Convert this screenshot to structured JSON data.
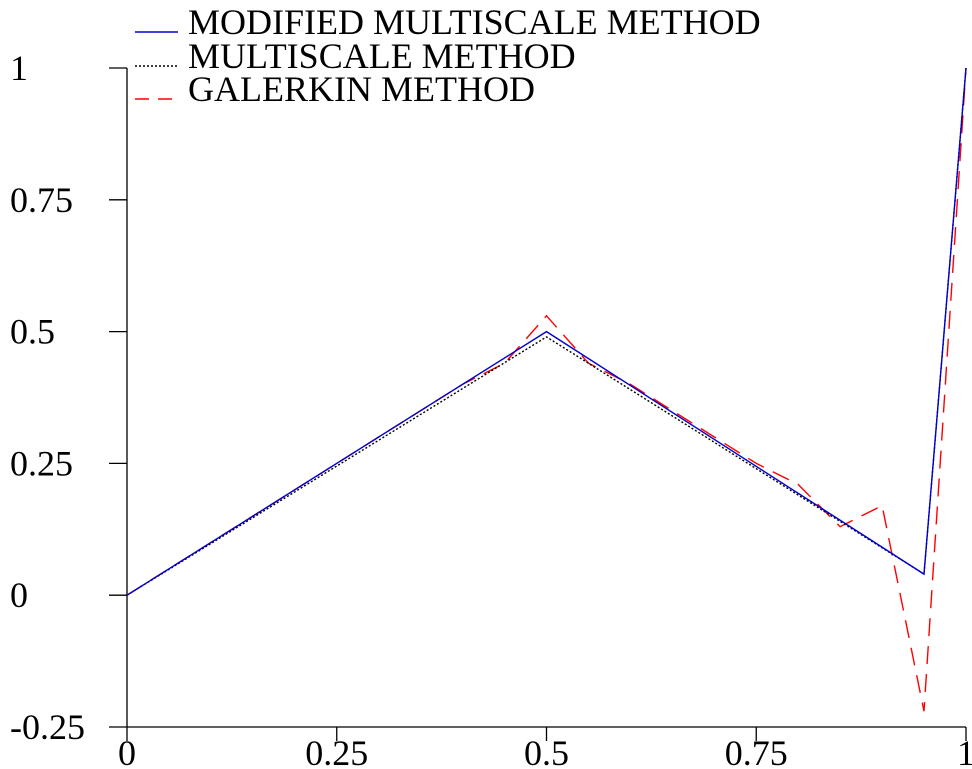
{
  "chart_data": {
    "type": "line",
    "title": "",
    "xlabel": "",
    "ylabel": "",
    "xlim": [
      0,
      1
    ],
    "ylim": [
      -0.25,
      1
    ],
    "x_ticks": [
      0,
      0.25,
      0.5,
      0.75,
      1
    ],
    "x_tick_labels": [
      "0",
      "0.25",
      "0.5",
      "0.75",
      "1"
    ],
    "y_ticks": [
      -0.25,
      0,
      0.25,
      0.5,
      0.75,
      1
    ],
    "y_tick_labels": [
      "-0.25",
      "0",
      "0.25",
      "0.5",
      "0.75",
      "1"
    ],
    "grid": false,
    "legend_position": "top-left",
    "series": [
      {
        "name": "MODIFIED MULTISCALE METHOD",
        "color": "#0000cc",
        "style": "solid",
        "x": [
          0,
          0.5,
          0.95,
          1
        ],
        "y": [
          0,
          0.5,
          0.04,
          1
        ]
      },
      {
        "name": "MULTISCALE METHOD",
        "color": "#000000",
        "style": "dotted",
        "x": [
          0,
          0.5,
          0.95,
          1
        ],
        "y": [
          0,
          0.49,
          0.04,
          1
        ]
      },
      {
        "name": "GALERKIN METHOD",
        "color": "#ff0000",
        "style": "dashed",
        "x": [
          0,
          0.05,
          0.1,
          0.15,
          0.2,
          0.25,
          0.3,
          0.35,
          0.4,
          0.45,
          0.5,
          0.55,
          0.6,
          0.65,
          0.7,
          0.75,
          0.8,
          0.85,
          0.9,
          0.95,
          1
        ],
        "y": [
          0,
          0.05,
          0.1,
          0.15,
          0.2,
          0.25,
          0.3,
          0.35,
          0.4,
          0.44,
          0.53,
          0.44,
          0.4,
          0.35,
          0.3,
          0.25,
          0.21,
          0.13,
          0.17,
          -0.22,
          1
        ]
      }
    ]
  }
}
